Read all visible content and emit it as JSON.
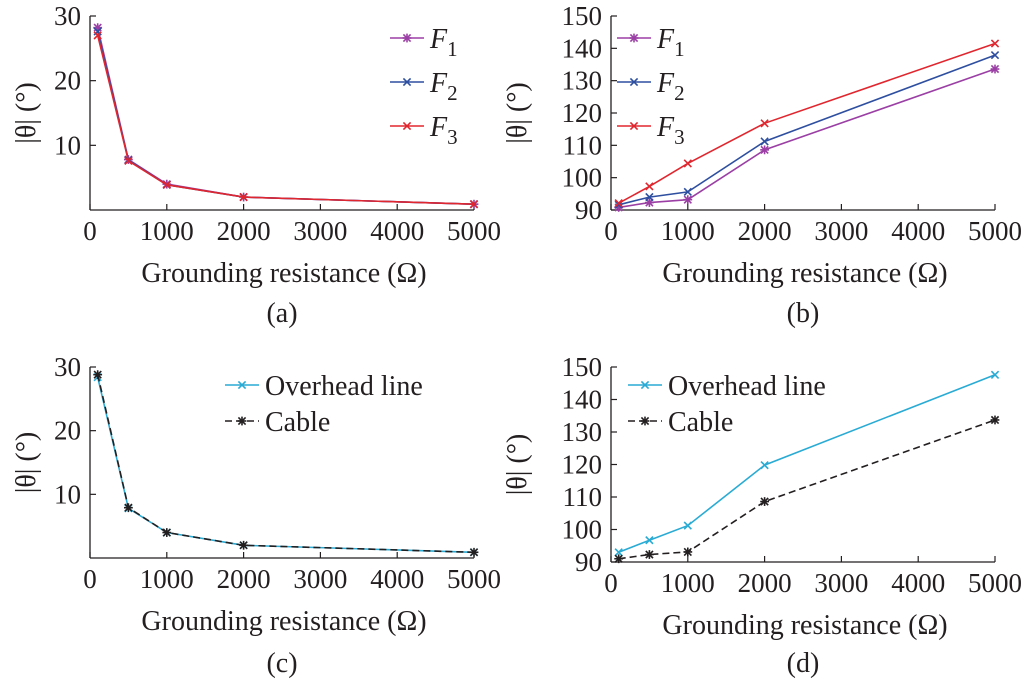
{
  "chart_data": [
    {
      "panel": "(a)",
      "type": "line",
      "xlabel": "Grounding resistance (Ω)",
      "ylabel": "|θ| (°)",
      "xlim": [
        0,
        5000
      ],
      "ylim": [
        0,
        30
      ],
      "xticks": [
        "0",
        "1000",
        "2000",
        "3000",
        "4000",
        "5000"
      ],
      "yticks": [
        "10",
        "20",
        "30"
      ],
      "x": [
        100,
        500,
        1000,
        2000,
        5000
      ],
      "legend": "top-right",
      "series": [
        {
          "name": "F1",
          "sym": "F",
          "sub": "1",
          "marker": "star",
          "color": "#9b3fa5",
          "dash": "",
          "values": [
            28.2,
            7.8,
            4.0,
            2.0,
            0.9
          ]
        },
        {
          "name": "F2",
          "sym": "F",
          "sub": "2",
          "marker": "cross",
          "color": "#2e4fa0",
          "dash": "",
          "values": [
            27.6,
            7.7,
            3.9,
            2.0,
            0.9
          ]
        },
        {
          "name": "F3",
          "sym": "F",
          "sub": "3",
          "marker": "cross",
          "color": "#e0262e",
          "dash": "",
          "values": [
            27.0,
            7.6,
            3.9,
            2.0,
            0.9
          ]
        }
      ]
    },
    {
      "panel": "(b)",
      "type": "line",
      "xlabel": "Grounding resistance (Ω)",
      "ylabel": "|θ| (°)",
      "xlim": [
        0,
        5000
      ],
      "ylim": [
        90,
        150
      ],
      "xticks": [
        "0",
        "1000",
        "2000",
        "3000",
        "4000",
        "5000"
      ],
      "yticks": [
        "90",
        "100",
        "110",
        "120",
        "130",
        "140",
        "150"
      ],
      "x": [
        100,
        500,
        1000,
        2000,
        5000
      ],
      "legend": "top-left",
      "series": [
        {
          "name": "F1",
          "sym": "F",
          "sub": "1",
          "marker": "star",
          "color": "#9b3fa5",
          "dash": "",
          "values": [
            90.8,
            92.3,
            93.2,
            108.6,
            133.6
          ]
        },
        {
          "name": "F2",
          "sym": "F",
          "sub": "2",
          "marker": "cross",
          "color": "#2e4fa0",
          "dash": "",
          "values": [
            91.6,
            94.0,
            95.6,
            111.2,
            137.9
          ]
        },
        {
          "name": "F3",
          "sym": "F",
          "sub": "3",
          "marker": "cross",
          "color": "#e0262e",
          "dash": "",
          "values": [
            92.1,
            97.3,
            104.4,
            116.8,
            141.5
          ]
        }
      ]
    },
    {
      "panel": "(c)",
      "type": "line",
      "xlabel": "Grounding resistance (Ω)",
      "ylabel": "|θ| (°)",
      "xlim": [
        0,
        5000
      ],
      "ylim": [
        0,
        30
      ],
      "xticks": [
        "0",
        "1000",
        "2000",
        "3000",
        "4000",
        "5000"
      ],
      "yticks": [
        "10",
        "20",
        "30"
      ],
      "x": [
        100,
        500,
        1000,
        2000,
        5000
      ],
      "legend": "top-right",
      "series": [
        {
          "name": "Overhead line",
          "marker": "cross",
          "color": "#29abd4",
          "dash": "",
          "values": [
            28.4,
            7.8,
            4.0,
            2.0,
            0.9
          ]
        },
        {
          "name": "Cable",
          "marker": "star",
          "color": "#231f20",
          "dash": "7,4",
          "values": [
            28.8,
            7.9,
            4.0,
            2.0,
            0.9
          ]
        }
      ]
    },
    {
      "panel": "(d)",
      "type": "line",
      "xlabel": "Grounding resistance (Ω)",
      "ylabel": "|θ| (°)",
      "xlim": [
        0,
        5000
      ],
      "ylim": [
        90,
        150
      ],
      "xticks": [
        "0",
        "1000",
        "2000",
        "3000",
        "4000",
        "5000"
      ],
      "yticks": [
        "90",
        "100",
        "110",
        "120",
        "130",
        "140",
        "150"
      ],
      "x": [
        100,
        500,
        1000,
        2000,
        5000
      ],
      "legend": "top-left",
      "series": [
        {
          "name": "Overhead line",
          "marker": "cross",
          "color": "#29abd4",
          "dash": "",
          "values": [
            93.0,
            96.7,
            101.2,
            119.8,
            147.6
          ]
        },
        {
          "name": "Cable",
          "marker": "star",
          "color": "#231f20",
          "dash": "7,4",
          "values": [
            91.0,
            92.3,
            93.1,
            108.6,
            133.7
          ]
        }
      ]
    }
  ]
}
